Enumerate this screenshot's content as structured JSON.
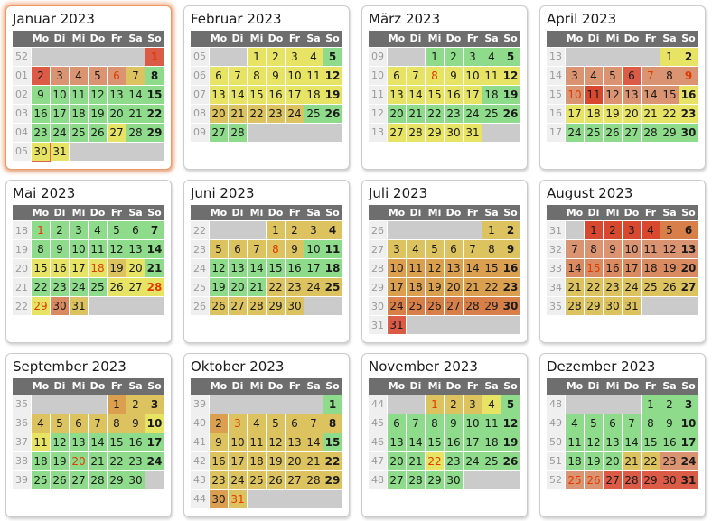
{
  "weekday_headers": [
    "Mo",
    "Di",
    "Mi",
    "Do",
    "Fr",
    "Sa",
    "So"
  ],
  "palette": {
    "g": "#8EDC8B",
    "y": "#E6E365",
    "t": "#DCC35F",
    "o": "#DBA04F",
    "p": "#DA8A60",
    "s": "#DB9472",
    "d": "#D87F49",
    "r": "#DC5B47",
    "rr": "#D8482F",
    "empty_bg": "#CBCBCB",
    "header_bg": "#6E6E6E",
    "header_text": "#FFFFFF",
    "week_bg": "#EFEFEF",
    "week_text": "#9A9A9A",
    "day_text": "#1A1A1A",
    "holiday_text": "#E03A00",
    "today_border": "#E2604B",
    "highlight_glow": "#ED9A66"
  },
  "months": [
    {
      "name": "Januar 2023",
      "highlight": true,
      "weeks": [
        {
          "wn": "52",
          "days": [
            null,
            null,
            null,
            null,
            null,
            null,
            "1:r:h"
          ]
        },
        {
          "wn": "01",
          "days": [
            "2:r",
            "3:s",
            "4:s",
            "5:s",
            "6:s:h",
            "7:t",
            "8:g"
          ]
        },
        {
          "wn": "02",
          "days": [
            "9:g",
            "10:g",
            "11:g",
            "12:g",
            "13:g",
            "14:g",
            "15:g"
          ]
        },
        {
          "wn": "03",
          "days": [
            "16:g",
            "17:g",
            "18:g",
            "19:g",
            "20:g",
            "21:g",
            "22:g"
          ]
        },
        {
          "wn": "04",
          "days": [
            "23:g",
            "24:g",
            "25:g",
            "26:g",
            "27:y",
            "28:g",
            "29:g"
          ]
        },
        {
          "wn": "05",
          "days": [
            "30:y:td",
            "31:y",
            null,
            null,
            null,
            null,
            null
          ]
        }
      ]
    },
    {
      "name": "Februar 2023",
      "highlight": false,
      "weeks": [
        {
          "wn": "05",
          "days": [
            null,
            null,
            "1:y",
            "2:y",
            "3:y",
            "4:y",
            "5:g"
          ]
        },
        {
          "wn": "06",
          "days": [
            "6:y",
            "7:y",
            "8:y",
            "9:y",
            "10:y",
            "11:y",
            "12:y"
          ]
        },
        {
          "wn": "07",
          "days": [
            "13:y",
            "14:y",
            "15:y",
            "16:y",
            "17:y",
            "18:y",
            "19:y"
          ]
        },
        {
          "wn": "08",
          "days": [
            "20:t",
            "21:t",
            "22:t",
            "23:t",
            "24:t",
            "25:g",
            "26:g"
          ]
        },
        {
          "wn": "09",
          "days": [
            "27:g",
            "28:g",
            null,
            null,
            null,
            null,
            null
          ]
        }
      ]
    },
    {
      "name": "März 2023",
      "highlight": false,
      "weeks": [
        {
          "wn": "09",
          "days": [
            null,
            null,
            "1:g",
            "2:g",
            "3:g",
            "4:g",
            "5:g"
          ]
        },
        {
          "wn": "10",
          "days": [
            "6:y",
            "7:y",
            "8:y:h",
            "9:y",
            "10:y",
            "11:y",
            "12:y"
          ]
        },
        {
          "wn": "11",
          "days": [
            "13:y",
            "14:y",
            "15:y",
            "16:y",
            "17:y",
            "18:g",
            "19:g"
          ]
        },
        {
          "wn": "12",
          "days": [
            "20:g",
            "21:g",
            "22:g",
            "23:g",
            "24:g",
            "25:g",
            "26:g"
          ]
        },
        {
          "wn": "13",
          "days": [
            "27:y",
            "28:y",
            "29:y",
            "30:y",
            "31:y",
            null,
            null
          ]
        }
      ]
    },
    {
      "name": "April 2023",
      "highlight": false,
      "weeks": [
        {
          "wn": "13",
          "days": [
            null,
            null,
            null,
            null,
            null,
            "1:y",
            "2:y"
          ]
        },
        {
          "wn": "14",
          "days": [
            "3:s",
            "4:s",
            "5:s",
            "6:r",
            "7:s:h",
            "8:s",
            "9:s:h"
          ]
        },
        {
          "wn": "15",
          "days": [
            "10:s:h",
            "11:rr",
            "12:s",
            "13:s",
            "14:s",
            "15:s",
            "16:y"
          ]
        },
        {
          "wn": "16",
          "days": [
            "17:y",
            "18:y",
            "19:y",
            "20:y",
            "21:y",
            "22:y",
            "23:y"
          ]
        },
        {
          "wn": "17",
          "days": [
            "24:g",
            "25:g",
            "26:g",
            "27:g",
            "28:g",
            "29:g",
            "30:g"
          ]
        }
      ]
    },
    {
      "name": "Mai 2023",
      "highlight": false,
      "weeks": [
        {
          "wn": "18",
          "days": [
            "1:g:h",
            "2:g",
            "3:g",
            "4:g",
            "5:g",
            "6:g",
            "7:g"
          ]
        },
        {
          "wn": "19",
          "days": [
            "8:g",
            "9:g",
            "10:g",
            "11:g",
            "12:g",
            "13:g",
            "14:g"
          ]
        },
        {
          "wn": "20",
          "days": [
            "15:y",
            "16:y",
            "17:y",
            "18:y:h",
            "19:t",
            "20:y",
            "21:g"
          ]
        },
        {
          "wn": "21",
          "days": [
            "22:g",
            "23:g",
            "24:g",
            "25:g",
            "26:y",
            "27:y",
            "28:y:h"
          ]
        },
        {
          "wn": "22",
          "days": [
            "29:y:h",
            "30:p",
            "31:t",
            null,
            null,
            null,
            null
          ]
        }
      ]
    },
    {
      "name": "Juni 2023",
      "highlight": false,
      "weeks": [
        {
          "wn": "22",
          "days": [
            null,
            null,
            null,
            "1:t",
            "2:t",
            "3:t",
            "4:t"
          ]
        },
        {
          "wn": "23",
          "days": [
            "5:t",
            "6:t",
            "7:t",
            "8:t:h",
            "9:t",
            "10:g",
            "11:g"
          ]
        },
        {
          "wn": "24",
          "days": [
            "12:g",
            "13:g",
            "14:g",
            "15:g",
            "16:g",
            "17:g",
            "18:g"
          ]
        },
        {
          "wn": "25",
          "days": [
            "19:g",
            "20:g",
            "21:g",
            "22:t",
            "23:t",
            "24:t",
            "25:t"
          ]
        },
        {
          "wn": "26",
          "days": [
            "26:t",
            "27:t",
            "28:t",
            "29:t",
            "30:t",
            null,
            null
          ]
        }
      ]
    },
    {
      "name": "Juli 2023",
      "highlight": false,
      "weeks": [
        {
          "wn": "26",
          "days": [
            null,
            null,
            null,
            null,
            null,
            "1:t",
            "2:t"
          ]
        },
        {
          "wn": "27",
          "days": [
            "3:t",
            "4:t",
            "5:t",
            "6:t",
            "7:t",
            "8:t",
            "9:t"
          ]
        },
        {
          "wn": "28",
          "days": [
            "10:o",
            "11:o",
            "12:o",
            "13:o",
            "14:o",
            "15:o",
            "16:o"
          ]
        },
        {
          "wn": "29",
          "days": [
            "17:o",
            "18:o",
            "19:o",
            "20:o",
            "21:o",
            "22:o",
            "23:o"
          ]
        },
        {
          "wn": "30",
          "days": [
            "24:d",
            "25:d",
            "26:d",
            "27:d",
            "28:d",
            "29:d",
            "30:d"
          ]
        },
        {
          "wn": "31",
          "days": [
            "31:r",
            null,
            null,
            null,
            null,
            null,
            null
          ]
        }
      ]
    },
    {
      "name": "August 2023",
      "highlight": false,
      "weeks": [
        {
          "wn": "31",
          "days": [
            null,
            "1:rr",
            "2:rr",
            "3:rr",
            "4:rr",
            "5:d",
            "6:d"
          ]
        },
        {
          "wn": "32",
          "days": [
            "7:s",
            "8:s",
            "9:s",
            "10:s",
            "11:s",
            "12:s",
            "13:s"
          ]
        },
        {
          "wn": "33",
          "days": [
            "14:p",
            "15:p:h",
            "16:p",
            "17:p",
            "18:p",
            "19:p",
            "20:p"
          ]
        },
        {
          "wn": "34",
          "days": [
            "21:t",
            "22:t",
            "23:t",
            "24:t",
            "25:t",
            "26:t",
            "27:t"
          ]
        },
        {
          "wn": "35",
          "days": [
            "28:t",
            "29:t",
            "30:t",
            "31:t",
            null,
            null,
            null
          ]
        }
      ]
    },
    {
      "name": "September 2023",
      "highlight": false,
      "weeks": [
        {
          "wn": "35",
          "days": [
            null,
            null,
            null,
            null,
            "1:o",
            "2:t",
            "3:t"
          ]
        },
        {
          "wn": "36",
          "days": [
            "4:t",
            "5:t",
            "6:t",
            "7:t",
            "8:t",
            "9:t",
            "10:y"
          ]
        },
        {
          "wn": "37",
          "days": [
            "11:y",
            "12:g",
            "13:g",
            "14:g",
            "15:g",
            "16:g",
            "17:g"
          ]
        },
        {
          "wn": "38",
          "days": [
            "18:g",
            "19:g",
            "20:g:h",
            "21:g",
            "22:g",
            "23:g",
            "24:g"
          ]
        },
        {
          "wn": "39",
          "days": [
            "25:g",
            "26:g",
            "27:g",
            "28:g",
            "29:g",
            "30:g",
            null
          ]
        }
      ]
    },
    {
      "name": "Oktober 2023",
      "highlight": false,
      "weeks": [
        {
          "wn": "39",
          "days": [
            null,
            null,
            null,
            null,
            null,
            null,
            "1:g"
          ]
        },
        {
          "wn": "40",
          "days": [
            "2:o",
            "3:t:h",
            "4:t",
            "5:t",
            "6:t",
            "7:t",
            "8:t"
          ]
        },
        {
          "wn": "41",
          "days": [
            "9:t",
            "10:t",
            "11:t",
            "12:t",
            "13:t",
            "14:t",
            "15:g"
          ]
        },
        {
          "wn": "42",
          "days": [
            "16:t",
            "17:t",
            "18:t",
            "19:t",
            "20:t",
            "21:t",
            "22:t"
          ]
        },
        {
          "wn": "43",
          "days": [
            "23:t",
            "24:t",
            "25:t",
            "26:t",
            "27:t",
            "28:t",
            "29:t"
          ]
        },
        {
          "wn": "44",
          "days": [
            "30:o",
            "31:t:h",
            null,
            null,
            null,
            null,
            null
          ]
        }
      ]
    },
    {
      "name": "November 2023",
      "highlight": false,
      "weeks": [
        {
          "wn": "44",
          "days": [
            null,
            null,
            "1:t:h",
            "2:t",
            "3:t",
            "4:y",
            "5:g"
          ]
        },
        {
          "wn": "45",
          "days": [
            "6:g",
            "7:g",
            "8:g",
            "9:g",
            "10:g",
            "11:g",
            "12:g"
          ]
        },
        {
          "wn": "46",
          "days": [
            "13:g",
            "14:g",
            "15:g",
            "16:g",
            "17:g",
            "18:g",
            "19:g"
          ]
        },
        {
          "wn": "47",
          "days": [
            "20:g",
            "21:g",
            "22:y:h",
            "23:g",
            "24:g",
            "25:g",
            "26:g"
          ]
        },
        {
          "wn": "48",
          "days": [
            "27:g",
            "28:g",
            "29:g",
            "30:g",
            null,
            null,
            null
          ]
        }
      ]
    },
    {
      "name": "Dezember 2023",
      "highlight": false,
      "weeks": [
        {
          "wn": "48",
          "days": [
            null,
            null,
            null,
            null,
            "1:g",
            "2:g",
            "3:g"
          ]
        },
        {
          "wn": "49",
          "days": [
            "4:g",
            "5:g",
            "6:g",
            "7:g",
            "8:g",
            "9:g",
            "10:g"
          ]
        },
        {
          "wn": "50",
          "days": [
            "11:g",
            "12:g",
            "13:g",
            "14:g",
            "15:g",
            "16:g",
            "17:g"
          ]
        },
        {
          "wn": "51",
          "days": [
            "18:g",
            "19:g",
            "20:g",
            "21:t",
            "22:t",
            "23:s",
            "24:s"
          ]
        },
        {
          "wn": "52",
          "days": [
            "25:s:h",
            "26:s:h",
            "27:r",
            "28:r",
            "29:r",
            "30:r",
            "31:r"
          ]
        }
      ]
    }
  ]
}
